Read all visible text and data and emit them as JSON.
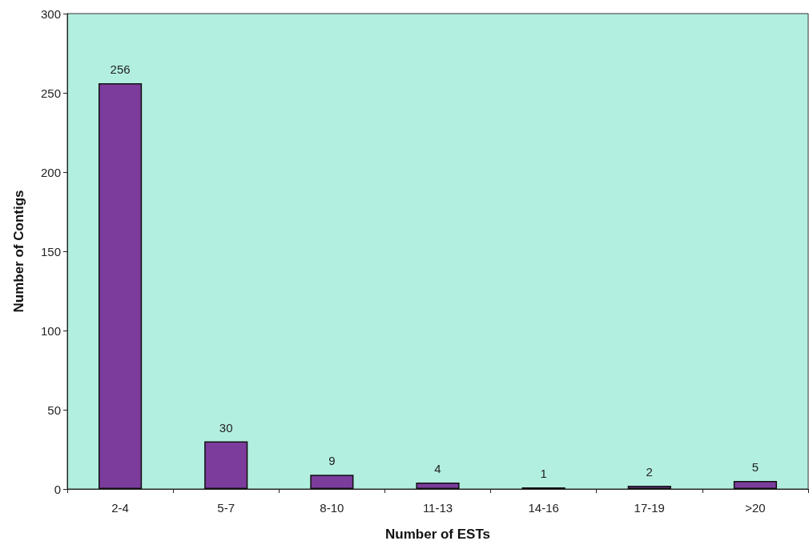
{
  "chart_data": {
    "type": "bar",
    "xlabel": "Number of ESTs",
    "ylabel": "Number of Contigs",
    "categories": [
      "2-4",
      "5-7",
      "8-10",
      "11-13",
      "14-16",
      "17-19",
      ">20"
    ],
    "values": [
      256,
      30,
      9,
      4,
      1,
      2,
      5
    ],
    "color": "#7b3c9c",
    "ylim": [
      0,
      300
    ],
    "yticks": [
      0,
      50,
      100,
      150,
      200,
      250,
      300
    ],
    "grid": false,
    "data_labels": true
  }
}
